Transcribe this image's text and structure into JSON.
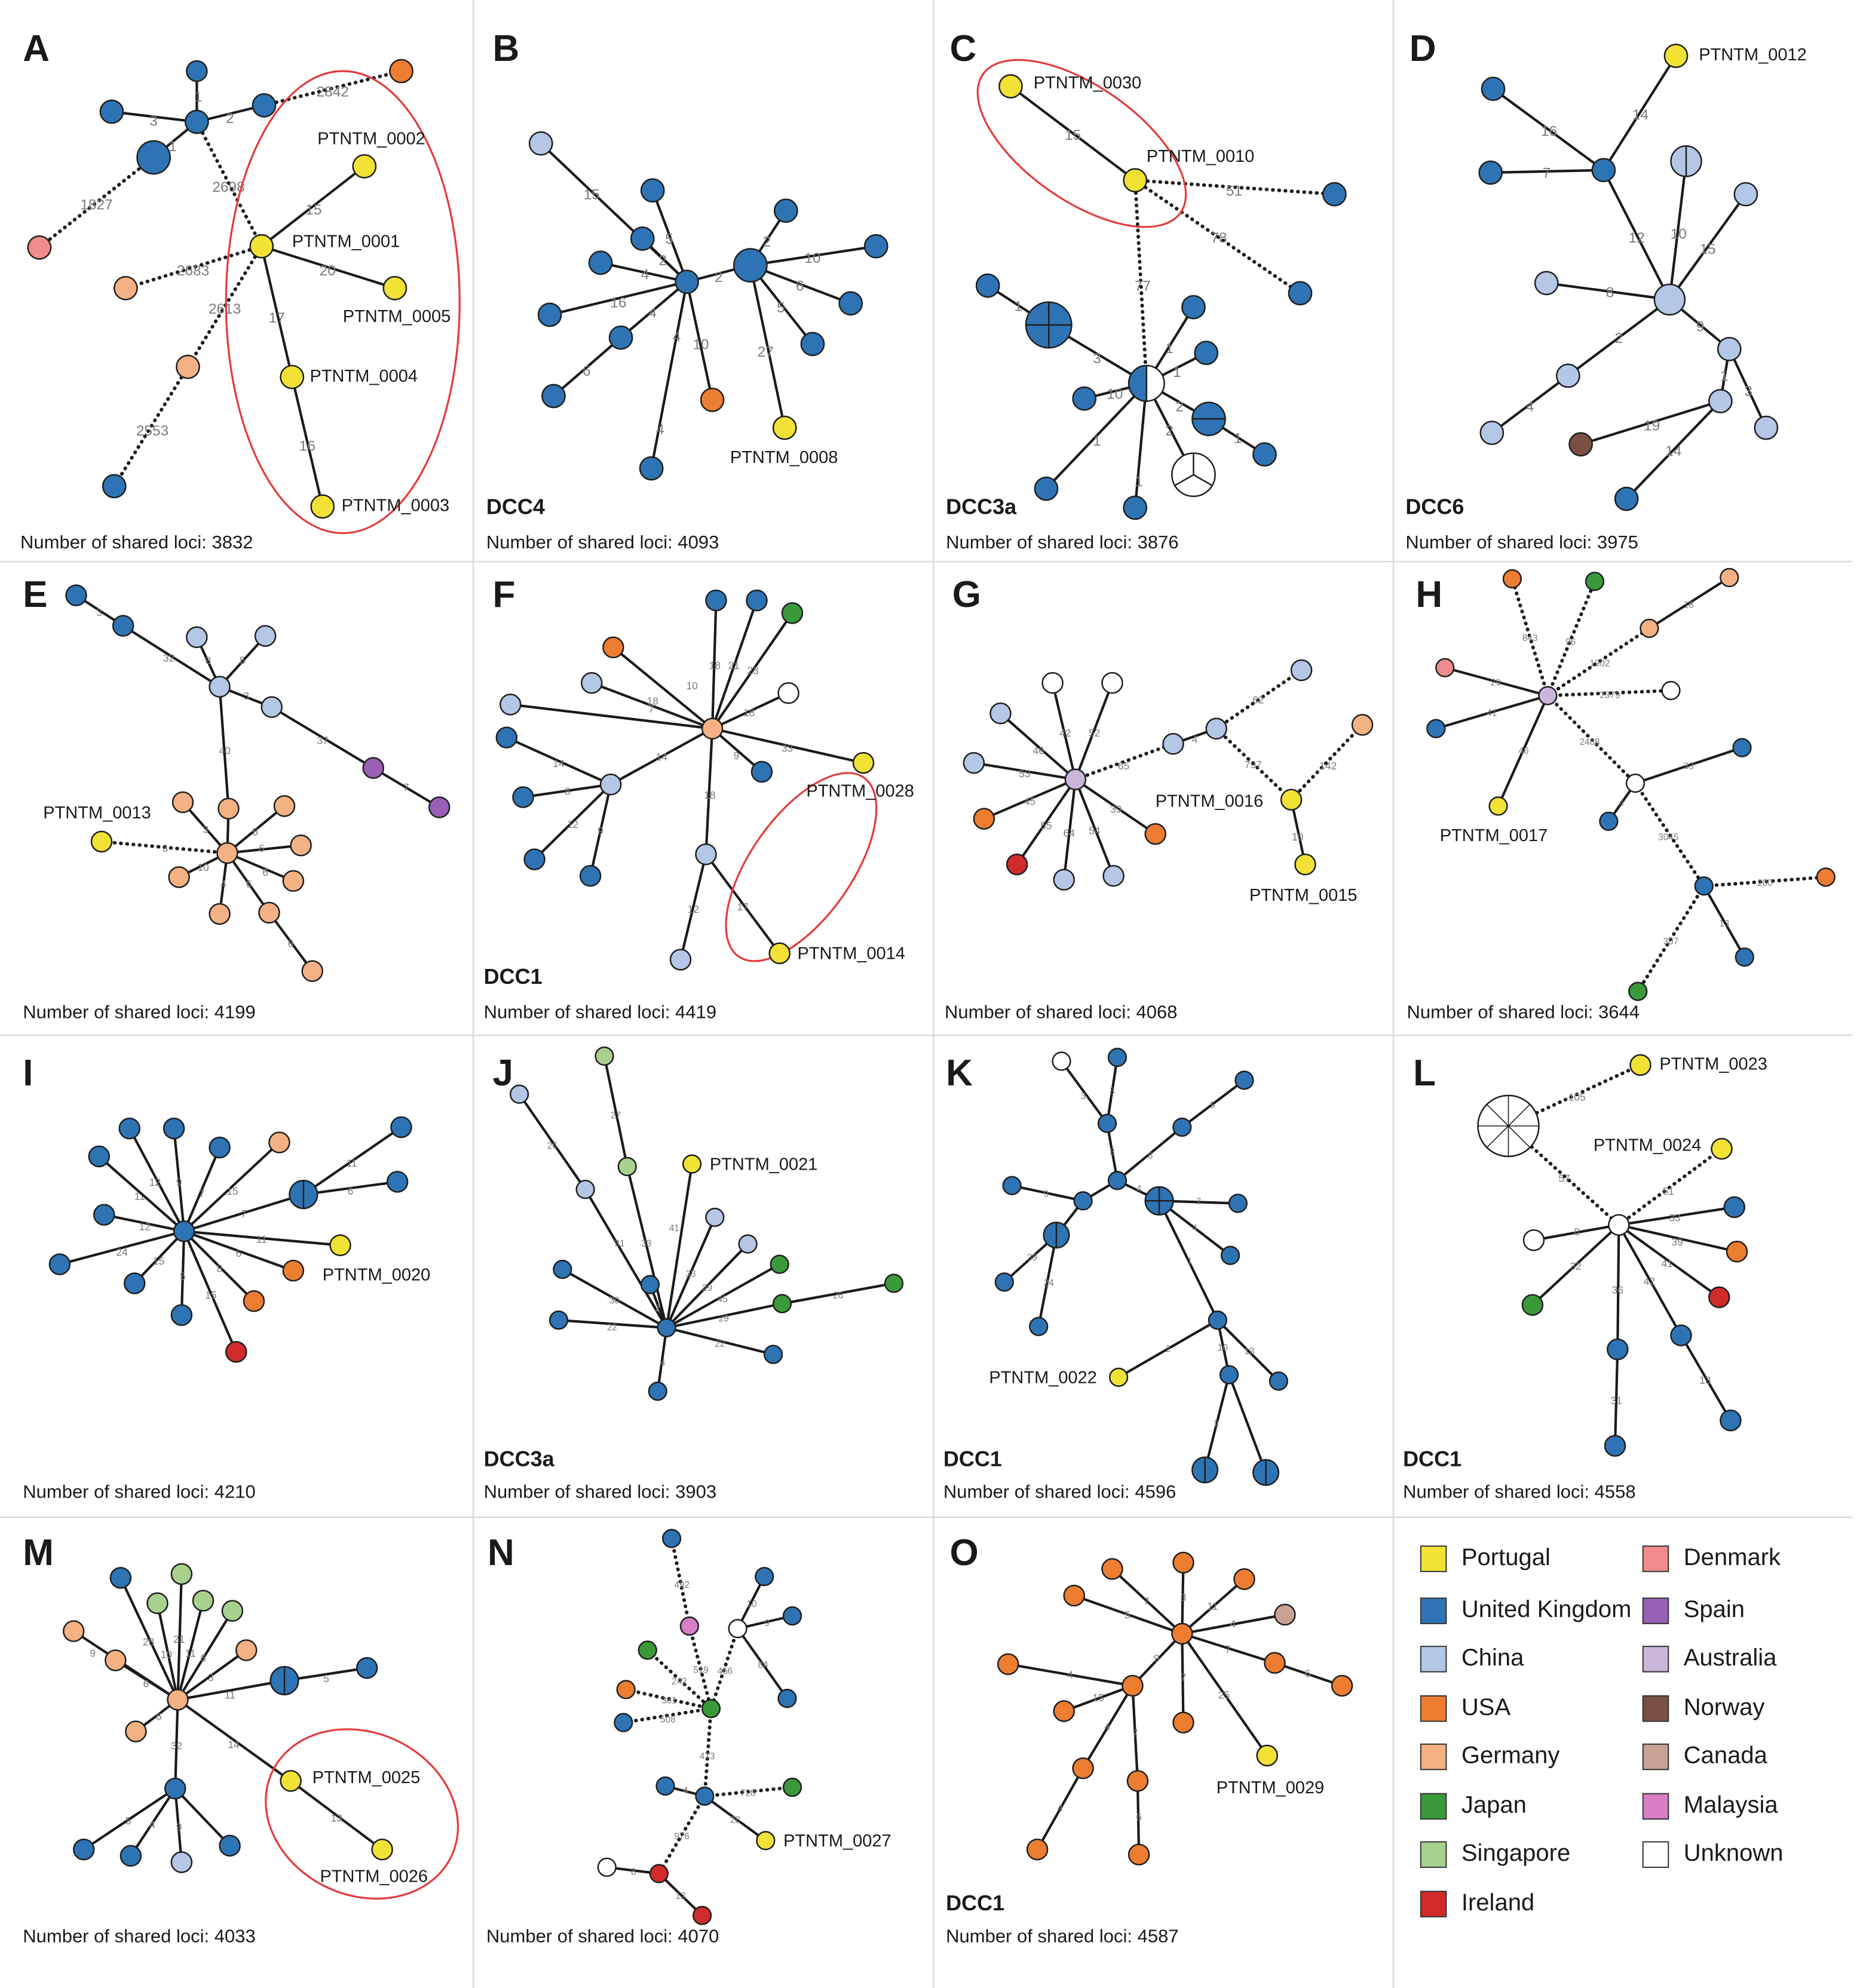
{
  "colors": {
    "Portugal": "#f2e236",
    "United Kingdom": "#2e74b5",
    "China": "#b4c7e7",
    "USA": "#ed7d31",
    "Germany": "#f4b183",
    "Japan": "#3a9a3a",
    "Singapore": "#a9d18e",
    "Ireland": "#d12a2a",
    "Denmark": "#f08c8c",
    "Spain": "#9a5fb6",
    "Australia": "#c9b6d9",
    "Norway": "#7b5043",
    "Canada": "#c8a295",
    "Malaysia": "#d77ec4",
    "Unknown": "#ffffff",
    "highlight": "#e33b3b"
  },
  "legend": {
    "items": [
      "Portugal",
      "United Kingdom",
      "China",
      "USA",
      "Germany",
      "Japan",
      "Singapore",
      "Ireland",
      "Denmark",
      "Spain",
      "Australia",
      "Norway",
      "Canada",
      "Malaysia",
      "Unknown"
    ]
  },
  "panels": {
    "A": {
      "label": "A",
      "dcc": "",
      "footer": "Number of shared loci: 3832",
      "isolates": [
        "PTNTM_0002",
        "PTNTM_0001",
        "PTNTM_0005",
        "PTNTM_0004",
        "PTNTM_0003"
      ],
      "edges": [
        "1",
        "3",
        "2",
        "1",
        "2842",
        "2698",
        "1827",
        "15",
        "20",
        "2683",
        "2613",
        "17",
        "16",
        "2553"
      ]
    },
    "B": {
      "label": "B",
      "dcc": "DCC4",
      "footer": "Number of shared loci: 4093",
      "isolates": [
        "PTNTM_0008"
      ],
      "edges": [
        "15",
        "5",
        "2",
        "4",
        "16",
        "4",
        "6",
        "10",
        "4",
        "4",
        "2",
        "2",
        "10",
        "6",
        "5",
        "27"
      ]
    },
    "C": {
      "label": "C",
      "dcc": "DCC3a",
      "footer": "Number of shared loci: 3876",
      "isolates": [
        "PTNTM_0030",
        "PTNTM_0010"
      ],
      "edges": [
        "15",
        "51",
        "78",
        "77",
        "1",
        "3",
        "1",
        "1",
        "2",
        "1",
        "10",
        "1",
        "1",
        "2",
        "1",
        "1",
        "1"
      ]
    },
    "D": {
      "label": "D",
      "dcc": "DCC6",
      "footer": "Number of shared loci: 3975",
      "isolates": [
        "PTNTM_0012"
      ],
      "edges": [
        "14",
        "16",
        "7",
        "12",
        "10",
        "15",
        "8",
        "9",
        "2",
        "4",
        "1",
        "3",
        "19",
        "14"
      ]
    },
    "E": {
      "label": "E",
      "dcc": "",
      "footer": "Number of shared loci: 4199",
      "isolates": [
        "PTNTM_0013"
      ],
      "edges": [
        "3",
        "32",
        "3",
        "5",
        "3",
        "40",
        "37",
        "7",
        "104",
        "3",
        "3",
        "5",
        "6",
        "10",
        "6",
        "4",
        "6",
        "6"
      ]
    },
    "F": {
      "label": "F",
      "dcc": "DCC1",
      "footer": "Number of shared loci: 4419",
      "isolates": [
        "PTNTM_0028",
        "PTNTM_0014"
      ],
      "edges": [
        "10",
        "18",
        "21",
        "23",
        "18",
        "18",
        "7",
        "33",
        "9",
        "14",
        "14",
        "8",
        "12",
        "9",
        "18",
        "12",
        "17"
      ]
    },
    "G": {
      "label": "G",
      "dcc": "",
      "footer": "Number of shared loci: 4068",
      "isolates": [
        "PTNTM_0016",
        "PTNTM_0015"
      ],
      "edges": [
        "42",
        "52",
        "46",
        "53",
        "65",
        "4",
        "62",
        "797",
        "142",
        "45",
        "55",
        "64",
        "54",
        "39",
        "10"
      ]
    },
    "H": {
      "label": "H",
      "dcc": "",
      "footer": "Number of shared loci: 3644",
      "isolates": [
        "PTNTM_0017"
      ],
      "edges": [
        "843",
        "96",
        "1902",
        "18",
        "29",
        "41",
        "2379",
        "46",
        "2488",
        "4",
        "33",
        "3045",
        "200",
        "307",
        "13"
      ]
    },
    "I": {
      "label": "I",
      "dcc": "",
      "footer": "Number of shared loci: 4210",
      "isolates": [
        "PTNTM_0020"
      ],
      "edges": [
        "11",
        "12",
        "9",
        "7",
        "15",
        "11",
        "7",
        "6",
        "12",
        "24",
        "11",
        "15",
        "5",
        "6",
        "8",
        "15"
      ]
    },
    "J": {
      "label": "J",
      "dcc": "DCC3a",
      "footer": "Number of shared loci: 3903",
      "isolates": [
        "PTNTM_0021"
      ],
      "edges": [
        "27",
        "26",
        "31",
        "33",
        "41",
        "33",
        "29",
        "45",
        "29",
        "26",
        "30",
        "22",
        "22",
        "4",
        "2"
      ]
    },
    "K": {
      "label": "K",
      "dcc": "DCC1",
      "footer": "Number of shared loci: 4596",
      "isolates": [
        "PTNTM_0022"
      ],
      "edges": [
        "3",
        "3",
        "3",
        "6",
        "5",
        "4",
        "7",
        "4",
        "7",
        "9",
        "8",
        "39",
        "24",
        "1",
        "2",
        "10",
        "13",
        "2"
      ]
    },
    "L": {
      "label": "L",
      "dcc": "DCC1",
      "footer": "Number of shared loci: 4558",
      "isolates": [
        "PTNTM_0023",
        "PTNTM_0024"
      ],
      "edges": [
        "105",
        "57",
        "51",
        "8",
        "33",
        "39",
        "32",
        "41",
        "42",
        "36",
        "31",
        "13"
      ]
    },
    "M": {
      "label": "M",
      "dcc": "",
      "footer": "Number of shared loci: 4033",
      "isolates": [
        "PTNTM_0025",
        "PTNTM_0026"
      ],
      "edges": [
        "28",
        "21",
        "10",
        "11",
        "6",
        "9",
        "6",
        "3",
        "11",
        "5",
        "6",
        "32",
        "14",
        "13",
        "5",
        "4",
        "9"
      ]
    },
    "N": {
      "label": "N",
      "dcc": "",
      "footer": "Number of shared loci: 4070",
      "isolates": [
        "PTNTM_0027"
      ],
      "edges": [
        "492",
        "519",
        "466",
        "10",
        "9",
        "84",
        "242",
        "381",
        "508",
        "473",
        "728",
        "4",
        "28",
        "976",
        "8",
        "12"
      ]
    },
    "O": {
      "label": "O",
      "dcc": "DCC1",
      "footer": "Number of shared loci: 4587",
      "isolates": [
        "PTNTM_0029"
      ],
      "edges": [
        "7",
        "3",
        "5",
        "11",
        "4",
        "9",
        "7",
        "4",
        "15",
        "4",
        "7",
        "7",
        "6",
        "25",
        "4",
        "6",
        "4"
      ]
    }
  }
}
